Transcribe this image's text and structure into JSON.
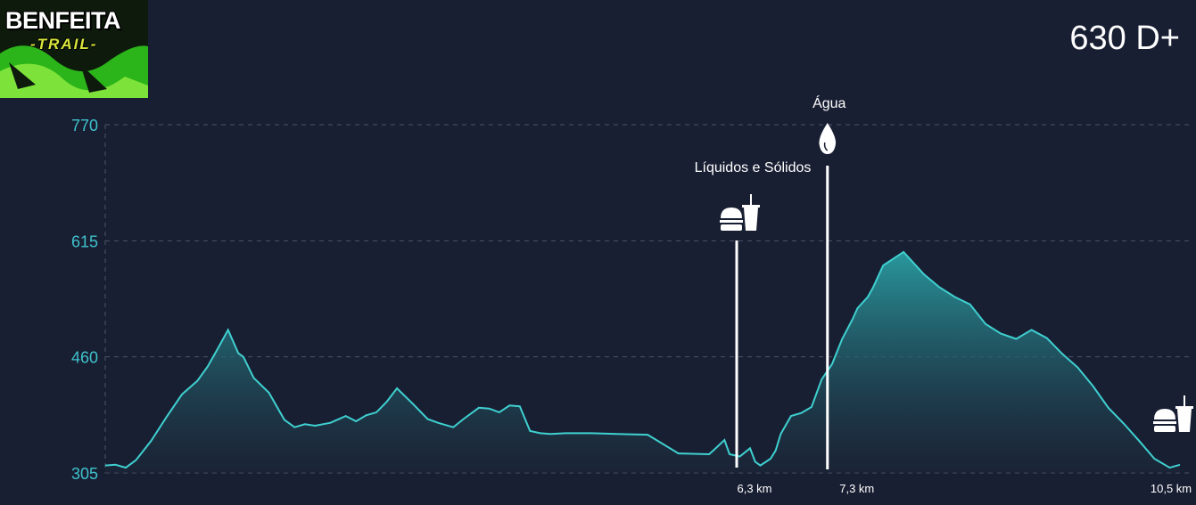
{
  "brand": {
    "line1": "BENFEITA",
    "line2": "-TRAIL-"
  },
  "elevation_gain": "630 D+",
  "colors": {
    "background": "#191f33",
    "line": "#3fd0d0",
    "fill_top": "#2a9ea3",
    "axis_text": "#3fc2cc",
    "marker": "#ffffff"
  },
  "chart_data": {
    "type": "area",
    "y_ticks": [
      770,
      615,
      460,
      305
    ],
    "ylim": [
      305,
      770
    ],
    "xlim": [
      0,
      10.5
    ],
    "x_tick_labels": [
      "6,3 km",
      "7,3 km",
      "10,5 km"
    ],
    "grid": true,
    "series": [
      {
        "x": [
          0,
          0.1,
          0.2,
          0.3,
          0.45,
          0.6,
          0.75,
          0.9,
          1.0,
          1.1,
          1.2,
          1.3,
          1.35,
          1.45,
          1.6,
          1.75,
          1.85,
          1.95,
          2.05,
          2.2,
          2.35,
          2.45,
          2.55,
          2.65,
          2.75,
          2.85,
          3.0,
          3.15,
          3.25,
          3.4,
          3.5,
          3.65,
          3.75,
          3.85,
          3.95,
          4.05,
          4.15,
          4.25,
          4.35,
          4.5,
          4.6,
          4.75,
          5.0,
          5.3,
          5.6,
          5.9,
          5.95,
          6.05,
          6.1,
          6.2,
          6.3,
          6.35,
          6.4,
          6.5,
          6.55,
          6.6,
          6.7,
          6.8,
          6.9,
          7.0,
          7.1,
          7.2,
          7.3,
          7.35,
          7.45,
          7.5,
          7.6,
          7.8,
          8.0,
          8.15,
          8.3,
          8.45,
          8.6,
          8.75,
          8.9,
          9.05,
          9.2,
          9.35,
          9.5,
          9.65,
          9.8,
          9.95,
          10.1,
          10.25,
          10.4,
          10.5
        ],
        "y": [
          315,
          316,
          312,
          322,
          348,
          380,
          410,
          428,
          447,
          471,
          496,
          465,
          460,
          432,
          412,
          376,
          366,
          370,
          368,
          372,
          381,
          374,
          382,
          386,
          400,
          418,
          398,
          377,
          372,
          366,
          377,
          392,
          391,
          386,
          395,
          394,
          361,
          358,
          357,
          358,
          358,
          358,
          357,
          356,
          331,
          330,
          336,
          349,
          330,
          327,
          338,
          320,
          315,
          324,
          335,
          357,
          381,
          385,
          393,
          430,
          450,
          484,
          510,
          525,
          540,
          552,
          582,
          600,
          570,
          553,
          540,
          530,
          504,
          491,
          484,
          496,
          485,
          464,
          446,
          421,
          392,
          371,
          348,
          324,
          312,
          316
        ],
        "name": ""
      }
    ],
    "annotations": [
      {
        "x": 6.3,
        "label": "Líquidos e Sólidos",
        "icon": "food-drink-icon"
      },
      {
        "x": 7.3,
        "label": "Água",
        "icon": "water-drop-icon"
      },
      {
        "x": 10.5,
        "label": "",
        "icon": "food-drink-icon"
      }
    ]
  }
}
